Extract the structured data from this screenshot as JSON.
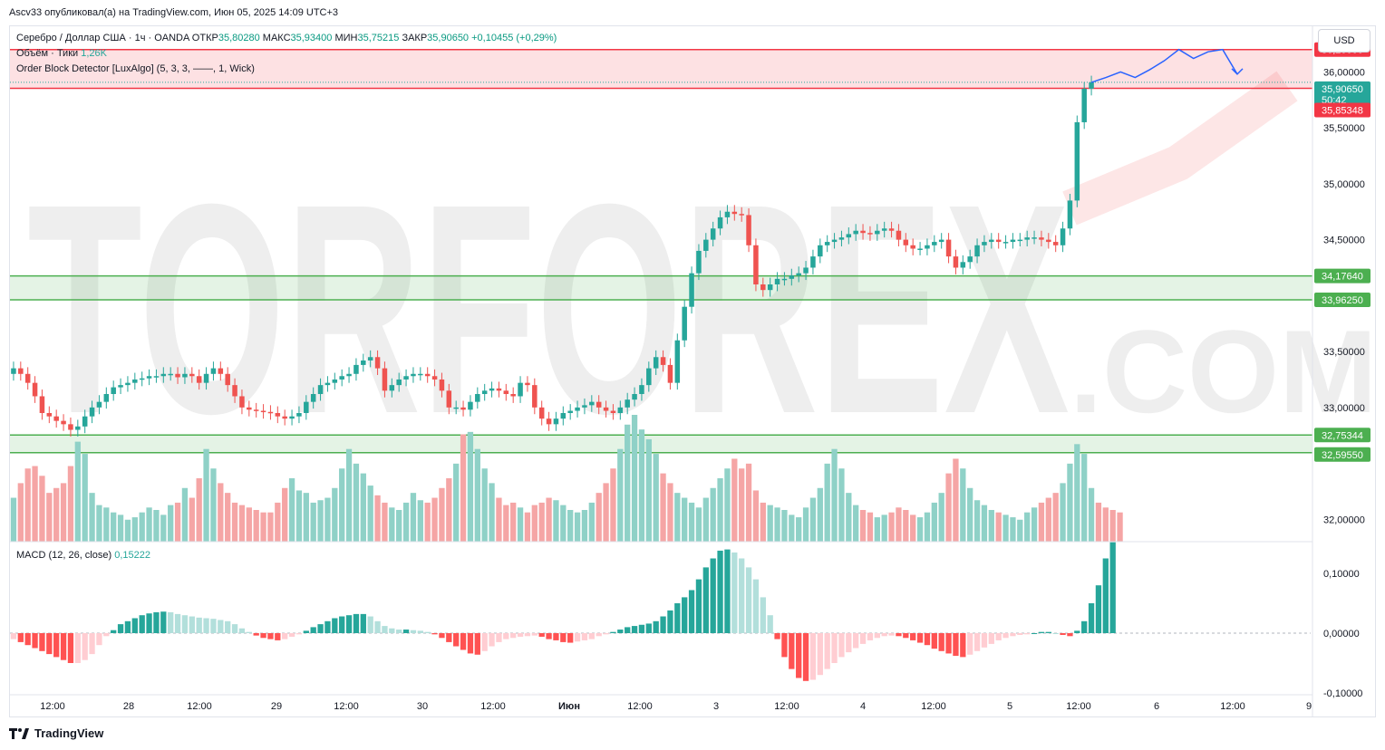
{
  "header": {
    "publisher": "Ascv33 опубликовал(а) на TradingView.com, Июн 05, 2025 14:09 UTC+3"
  },
  "legend": {
    "symbol": "Серебро / Доллар США · 1ч · OANDA",
    "open_label": "ОТКР",
    "open_value": "35,80280",
    "high_label": "МАКС",
    "high_value": "35,93400",
    "low_label": "МИН",
    "low_value": "35,75215",
    "close_label": "ЗАКР",
    "close_value": "35,90650",
    "change_value": "+0,10455 (+0,29%)",
    "volume_label": "Объём · Тики",
    "volume_value": "1,26K",
    "indicator_label": "Order Block Detector [LuxAlgo] (5, 3, 3, ——, 1, Wick)",
    "macd_label": "MACD (12, 26, close)",
    "macd_value": "0,15222"
  },
  "currency_button": "USD",
  "watermark": {
    "main": "TORFOREX",
    "suffix": ".COM"
  },
  "footer": {
    "brand": "TradingView"
  },
  "chart_data": [
    {
      "type": "candlestick",
      "title": "Серебро / Доллар США · 1ч · OANDA",
      "ylim": [
        31.8,
        36.4
      ],
      "x_ticks": [
        "12:00",
        "28",
        "12:00",
        "29",
        "12:00",
        "30",
        "12:00",
        "Июн",
        "12:00",
        "3",
        "12:00",
        "4",
        "12:00",
        "5",
        "12:00",
        "6",
        "12:00",
        "9"
      ],
      "y_ticks": [
        "36,00000",
        "35,50000",
        "35,00000",
        "34,50000",
        "33,50000",
        "33,00000",
        "32,00000"
      ],
      "price_labels": [
        {
          "value": "36,20000",
          "color": "#f23645"
        },
        {
          "value": "35,90650",
          "sub": "50:42",
          "color": "#26a69a"
        },
        {
          "value": "35,85348",
          "color": "#f23645"
        },
        {
          "value": "34,17640",
          "color": "#4caf50"
        },
        {
          "value": "33,96250",
          "color": "#4caf50"
        },
        {
          "value": "32,75344",
          "color": "#4caf50"
        },
        {
          "value": "32,59550",
          "color": "#4caf50"
        }
      ],
      "order_blocks": [
        {
          "kind": "bearish",
          "top": 36.2,
          "bottom": 35.85348,
          "color": "#f23645"
        },
        {
          "kind": "bullish",
          "top": 34.1764,
          "bottom": 33.9625,
          "color": "#4caf50"
        },
        {
          "kind": "bullish",
          "top": 32.75344,
          "bottom": 32.5955,
          "color": "#4caf50"
        }
      ],
      "current_price": 35.9065,
      "close_series": [
        33.35,
        33.3,
        33.22,
        33.1,
        32.95,
        32.92,
        32.88,
        32.85,
        32.8,
        32.83,
        32.92,
        33.0,
        33.05,
        33.12,
        33.18,
        33.2,
        33.22,
        33.25,
        33.26,
        33.28,
        33.28,
        33.3,
        33.3,
        33.27,
        33.3,
        33.28,
        33.22,
        33.3,
        33.35,
        33.3,
        33.2,
        33.1,
        33.0,
        32.98,
        32.97,
        32.96,
        32.95,
        32.92,
        32.9,
        32.92,
        32.95,
        33.05,
        33.12,
        33.2,
        33.22,
        33.25,
        33.28,
        33.3,
        33.38,
        33.42,
        33.45,
        33.35,
        33.15,
        33.2,
        33.25,
        33.28,
        33.3,
        33.3,
        33.28,
        33.25,
        33.15,
        33.0,
        33.0,
        32.98,
        33.05,
        33.12,
        33.15,
        33.17,
        33.15,
        33.12,
        33.1,
        33.22,
        33.2,
        33.0,
        32.9,
        32.85,
        32.9,
        32.95,
        32.97,
        33.0,
        33.02,
        33.05,
        33.0,
        32.97,
        32.95,
        33.0,
        33.07,
        33.12,
        33.2,
        33.35,
        33.45,
        33.38,
        33.22,
        33.6,
        33.9,
        34.2,
        34.4,
        34.5,
        34.6,
        34.7,
        34.75,
        34.73,
        34.72,
        34.45,
        34.1,
        34.05,
        34.1,
        34.15,
        34.15,
        34.18,
        34.2,
        34.25,
        34.35,
        34.45,
        34.48,
        34.5,
        34.52,
        34.55,
        34.58,
        34.56,
        34.55,
        34.58,
        34.6,
        34.58,
        34.5,
        34.45,
        34.42,
        34.42,
        34.45,
        34.48,
        34.5,
        34.35,
        34.25,
        34.3,
        34.35,
        34.45,
        34.48,
        34.5,
        34.48,
        34.48,
        34.5,
        34.5,
        34.52,
        34.52,
        34.5,
        34.48,
        34.45,
        34.6,
        34.85,
        35.55,
        35.85,
        35.906
      ],
      "projection": [
        35.95,
        36.0,
        35.95,
        36.02,
        36.1,
        36.2,
        36.12,
        36.18,
        36.2,
        35.98
      ]
    },
    {
      "type": "bar",
      "title": "Объём · Тики",
      "last_value": "1,26K",
      "values": [
        180,
        240,
        300,
        310,
        270,
        200,
        220,
        240,
        310,
        410,
        360,
        200,
        150,
        140,
        120,
        110,
        90,
        100,
        120,
        140,
        130,
        110,
        150,
        160,
        220,
        180,
        260,
        380,
        300,
        240,
        200,
        160,
        150,
        140,
        130,
        120,
        120,
        160,
        220,
        260,
        210,
        200,
        160,
        170,
        180,
        220,
        300,
        380,
        320,
        280,
        230,
        190,
        160,
        140,
        130,
        160,
        200,
        170,
        160,
        180,
        220,
        260,
        320,
        440,
        450,
        380,
        300,
        240,
        180,
        150,
        160,
        140,
        120,
        150,
        160,
        180,
        170,
        150,
        130,
        120,
        130,
        160,
        200,
        240,
        300,
        380,
        480,
        520,
        460,
        420,
        360,
        280,
        240,
        200,
        180,
        160,
        140,
        180,
        220,
        260,
        300,
        340,
        300,
        320,
        210,
        160,
        150,
        140,
        130,
        110,
        100,
        140,
        180,
        220,
        320,
        380,
        300,
        200,
        150,
        130,
        120,
        100,
        110,
        120,
        140,
        130,
        110,
        100,
        120,
        160,
        200,
        280,
        340,
        300,
        220,
        170,
        150,
        130,
        120,
        110,
        100,
        90,
        120,
        140,
        160,
        180,
        200,
        240,
        320,
        400,
        360,
        220,
        160,
        140,
        130,
        120
      ]
    },
    {
      "type": "bar",
      "title": "MACD (12, 26, close)",
      "ylim": [
        -0.1,
        0.15
      ],
      "y_ticks": [
        "0,10000",
        "0,00000",
        "-0,10000"
      ],
      "last_value": "0,15222",
      "values": [
        -0.01,
        -0.015,
        -0.02,
        -0.025,
        -0.03,
        -0.035,
        -0.04,
        -0.045,
        -0.05,
        -0.05,
        -0.045,
        -0.035,
        -0.02,
        -0.005,
        0.005,
        0.015,
        0.02,
        0.025,
        0.03,
        0.033,
        0.035,
        0.036,
        0.035,
        0.032,
        0.03,
        0.028,
        0.026,
        0.025,
        0.024,
        0.022,
        0.02,
        0.015,
        0.008,
        0.002,
        -0.004,
        -0.008,
        -0.01,
        -0.012,
        -0.01,
        -0.006,
        -0.002,
        0.004,
        0.01,
        0.015,
        0.02,
        0.025,
        0.028,
        0.03,
        0.032,
        0.032,
        0.028,
        0.02,
        0.012,
        0.008,
        0.006,
        0.006,
        0.005,
        0.004,
        0.002,
        -0.002,
        -0.008,
        -0.015,
        -0.022,
        -0.028,
        -0.034,
        -0.036,
        -0.03,
        -0.022,
        -0.015,
        -0.01,
        -0.008,
        -0.006,
        -0.005,
        -0.004,
        -0.006,
        -0.01,
        -0.012,
        -0.015,
        -0.016,
        -0.014,
        -0.012,
        -0.01,
        -0.005,
        -0.002,
        0.002,
        0.006,
        0.01,
        0.012,
        0.014,
        0.016,
        0.02,
        0.028,
        0.038,
        0.05,
        0.06,
        0.072,
        0.09,
        0.11,
        0.125,
        0.138,
        0.14,
        0.135,
        0.125,
        0.11,
        0.09,
        0.06,
        0.03,
        -0.01,
        -0.04,
        -0.06,
        -0.075,
        -0.08,
        -0.078,
        -0.07,
        -0.06,
        -0.05,
        -0.04,
        -0.032,
        -0.025,
        -0.018,
        -0.012,
        -0.008,
        -0.005,
        -0.004,
        -0.005,
        -0.008,
        -0.012,
        -0.016,
        -0.02,
        -0.026,
        -0.03,
        -0.034,
        -0.038,
        -0.04,
        -0.036,
        -0.03,
        -0.024,
        -0.018,
        -0.012,
        -0.008,
        -0.005,
        -0.003,
        -0.002,
        0.0,
        0.002,
        0.002,
        0.0,
        -0.003,
        -0.005,
        0.004,
        0.02,
        0.05,
        0.08,
        0.125,
        0.152
      ]
    }
  ]
}
